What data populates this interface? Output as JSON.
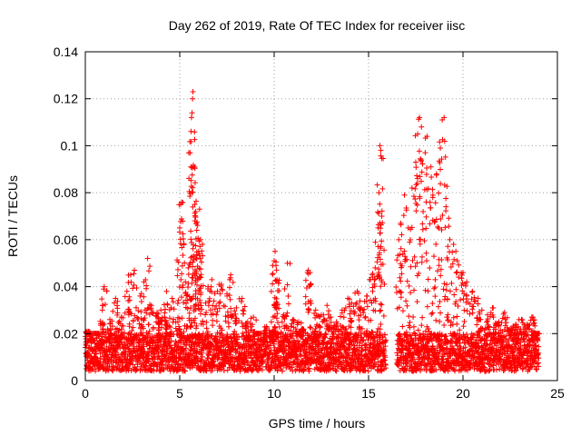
{
  "chart_data": {
    "type": "scatter",
    "title": "Day 262 of 2019, Rate Of TEC Index for receiver iisc",
    "xlabel": "GPS time / hours",
    "ylabel": "ROTI / TECUs",
    "xlim": [
      0,
      25
    ],
    "ylim": [
      0,
      0.14
    ],
    "xticks": [
      0,
      5,
      10,
      15,
      20,
      25
    ],
    "xtick_labels": [
      "0",
      "5",
      "10",
      "15",
      "20",
      "25"
    ],
    "yticks": [
      0,
      0.02,
      0.04,
      0.06,
      0.08,
      0.1,
      0.12,
      0.14
    ],
    "ytick_labels": [
      "0",
      "0.02",
      "0.04",
      "0.06",
      "0.08",
      "0.1",
      "0.12",
      "0.14"
    ],
    "grid": true,
    "marker": "+",
    "series": [
      {
        "name": "ROTI",
        "color": "#ff0000",
        "points": [
          [
            0.1,
            0.021
          ],
          [
            0.3,
            0.014
          ],
          [
            0.6,
            0.018
          ],
          [
            0.9,
            0.03
          ],
          [
            1.0,
            0.04
          ],
          [
            1.3,
            0.026
          ],
          [
            1.6,
            0.035
          ],
          [
            1.9,
            0.027
          ],
          [
            2.2,
            0.038
          ],
          [
            2.4,
            0.045
          ],
          [
            2.6,
            0.047
          ],
          [
            2.9,
            0.036
          ],
          [
            3.1,
            0.042
          ],
          [
            3.3,
            0.052
          ],
          [
            3.5,
            0.032
          ],
          [
            3.8,
            0.029
          ],
          [
            4.0,
            0.03
          ],
          [
            4.2,
            0.027
          ],
          [
            4.3,
            0.038
          ],
          [
            4.6,
            0.035
          ],
          [
            4.9,
            0.025
          ],
          [
            5.0,
            0.065
          ],
          [
            5.05,
            0.075
          ],
          [
            5.1,
            0.076
          ],
          [
            5.3,
            0.042
          ],
          [
            5.45,
            0.048
          ],
          [
            5.55,
            0.05
          ],
          [
            5.62,
            0.112
          ],
          [
            5.65,
            0.114
          ],
          [
            5.68,
            0.12
          ],
          [
            5.7,
            0.123
          ],
          [
            5.72,
            0.091
          ],
          [
            5.8,
            0.068
          ],
          [
            5.85,
            0.072
          ],
          [
            5.9,
            0.064
          ],
          [
            6.0,
            0.055
          ],
          [
            6.05,
            0.073
          ],
          [
            6.1,
            0.06
          ],
          [
            6.2,
            0.058
          ],
          [
            6.5,
            0.04
          ],
          [
            6.7,
            0.043
          ],
          [
            7.0,
            0.038
          ],
          [
            7.2,
            0.041
          ],
          [
            7.5,
            0.037
          ],
          [
            7.7,
            0.045
          ],
          [
            8.0,
            0.031
          ],
          [
            8.3,
            0.035
          ],
          [
            8.6,
            0.025
          ],
          [
            8.9,
            0.027
          ],
          [
            9.2,
            0.02
          ],
          [
            9.6,
            0.023
          ],
          [
            9.9,
            0.021
          ],
          [
            10.0,
            0.051
          ],
          [
            10.05,
            0.055
          ],
          [
            10.1,
            0.049
          ],
          [
            10.15,
            0.043
          ],
          [
            10.5,
            0.028
          ],
          [
            10.7,
            0.05
          ],
          [
            11.0,
            0.026
          ],
          [
            11.3,
            0.025
          ],
          [
            11.5,
            0.022
          ],
          [
            11.8,
            0.047
          ],
          [
            11.9,
            0.046
          ],
          [
            12.2,
            0.03
          ],
          [
            12.5,
            0.028
          ],
          [
            12.8,
            0.032
          ],
          [
            13.0,
            0.027
          ],
          [
            13.3,
            0.025
          ],
          [
            13.6,
            0.03
          ],
          [
            13.9,
            0.035
          ],
          [
            14.1,
            0.033
          ],
          [
            14.4,
            0.038
          ],
          [
            14.6,
            0.031
          ],
          [
            14.9,
            0.036
          ],
          [
            15.2,
            0.045
          ],
          [
            15.35,
            0.048
          ],
          [
            15.5,
            0.065
          ],
          [
            15.55,
            0.08
          ],
          [
            15.6,
            0.1
          ],
          [
            15.65,
            0.098
          ],
          [
            15.7,
            0.07
          ],
          [
            16.6,
            0.06
          ],
          [
            16.7,
            0.067
          ],
          [
            16.9,
            0.079
          ],
          [
            17.1,
            0.065
          ],
          [
            17.3,
            0.082
          ],
          [
            17.5,
            0.093
          ],
          [
            17.6,
            0.105
          ],
          [
            17.7,
            0.112
          ],
          [
            17.8,
            0.108
          ],
          [
            18.0,
            0.097
          ],
          [
            18.1,
            0.104
          ],
          [
            18.3,
            0.091
          ],
          [
            18.4,
            0.078
          ],
          [
            18.6,
            0.088
          ],
          [
            18.8,
            0.099
          ],
          [
            18.9,
            0.111
          ],
          [
            19.0,
            0.112
          ],
          [
            19.1,
            0.074
          ],
          [
            19.3,
            0.06
          ],
          [
            19.5,
            0.058
          ],
          [
            19.7,
            0.051
          ],
          [
            20.0,
            0.046
          ],
          [
            20.2,
            0.042
          ],
          [
            20.5,
            0.038
          ],
          [
            20.8,
            0.035
          ],
          [
            21.0,
            0.03
          ],
          [
            21.3,
            0.028
          ],
          [
            21.6,
            0.031
          ],
          [
            21.9,
            0.025
          ],
          [
            22.2,
            0.029
          ],
          [
            22.5,
            0.022
          ],
          [
            22.8,
            0.024
          ],
          [
            23.1,
            0.026
          ],
          [
            23.4,
            0.024
          ],
          [
            23.7,
            0.027
          ],
          [
            23.9,
            0.013
          ]
        ],
        "base_band": {
          "segments": [
            [
              0.0,
              15.9
            ],
            [
              16.5,
              24.0
            ]
          ],
          "typical_min": 0.004,
          "typical_max": 0.02
        }
      }
    ]
  }
}
